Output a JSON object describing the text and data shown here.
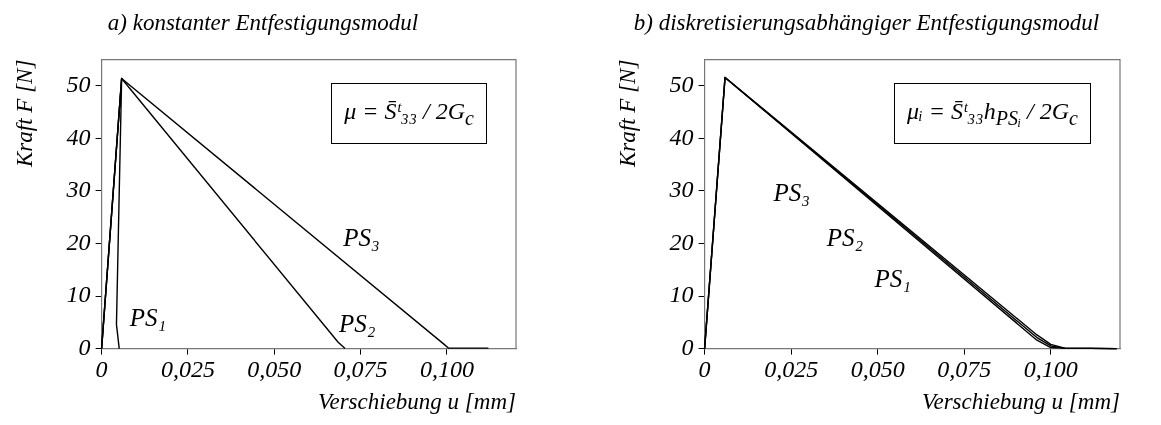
{
  "chart_data": [
    {
      "type": "line",
      "title": "a) konstanter Entfestigungsmodul",
      "xlabel": "Verschiebung u [mm]",
      "ylabel": "Kraft F [N]",
      "xlim": [
        0,
        0.12
      ],
      "ylim": [
        0,
        55
      ],
      "xticks": [
        0,
        {
          "value": 0.025,
          "label": "0,025"
        },
        {
          "value": 0.05,
          "label": "0,050"
        },
        {
          "value": 0.075,
          "label": "0,075"
        },
        {
          "value": 0.1,
          "label": "0,100"
        }
      ],
      "yticks": [
        0,
        10,
        20,
        30,
        40,
        50
      ],
      "grid": false,
      "legend": false,
      "marker": "none",
      "series": [
        {
          "name": "PS₁",
          "color": "#000000",
          "x": [
            0,
            0.0058,
            0.0043,
            0.0051
          ],
          "values": [
            0,
            51.4,
            4.6,
            0
          ]
        },
        {
          "name": "PS₂",
          "color": "#000000",
          "x": [
            0,
            0.0058,
            0.0685,
            0.0705
          ],
          "values": [
            0,
            51.4,
            1.2,
            0
          ]
        },
        {
          "name": "PS₃",
          "color": "#000000",
          "x": [
            0,
            0.0058,
            0.0992,
            0.1004,
            0.112
          ],
          "values": [
            0,
            51.4,
            0.8,
            0.1,
            0.1
          ]
        }
      ],
      "annotations": [
        "μ = S̄ᵗ₃₃ / 2G$_{c}$"
      ]
    },
    {
      "type": "line",
      "title": "b) diskretisierungsabhängiger Entfestigungsmodul",
      "xlabel": "Verschiebung u [mm]",
      "ylabel": "Kraft F [N]",
      "xlim": [
        0,
        0.12
      ],
      "ylim": [
        0,
        55
      ],
      "xticks": [
        0,
        {
          "value": 0.025,
          "label": "0,025"
        },
        {
          "value": 0.05,
          "label": "0,050"
        },
        {
          "value": 0.075,
          "label": "0,075"
        },
        {
          "value": 0.1,
          "label": "0,100"
        }
      ],
      "yticks": [
        0,
        10,
        20,
        30,
        40,
        50
      ],
      "grid": false,
      "legend": false,
      "marker": "none",
      "series": [
        {
          "name": "PS₁",
          "color": "#000000",
          "x": [
            0,
            0.0059,
            0.096,
            0.1,
            0.104,
            0.119
          ],
          "values": [
            0,
            51.6,
            2.6,
            0.8,
            0.1,
            0
          ]
        },
        {
          "name": "PS₂",
          "color": "#000000",
          "x": [
            0,
            0.0059,
            0.096,
            0.1,
            0.104,
            0.119
          ],
          "values": [
            0,
            51.6,
            2.1,
            0.5,
            0.1,
            0
          ]
        },
        {
          "name": "PS₃",
          "color": "#000000",
          "x": [
            0,
            0.0059,
            0.096,
            0.1,
            0.104,
            0.119
          ],
          "values": [
            0,
            51.6,
            1.6,
            0.2,
            0.1,
            0
          ]
        }
      ],
      "annotations": [
        "μᵢ = S̄ᵗ₃₃h$_{PSᵢ}$ / 2G$_{c}$"
      ]
    }
  ]
}
